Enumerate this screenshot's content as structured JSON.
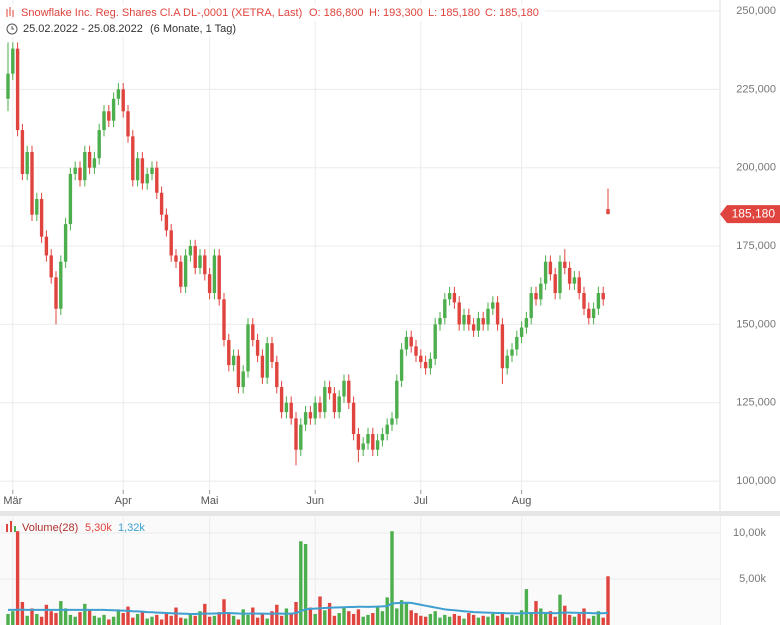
{
  "chart_data": {
    "type": "candlestick",
    "title": "Snowflake Inc. Reg. Shares Cl.A DL-,0001 (XETRA, Last)",
    "ohlc_labels": [
      "O: 186,800",
      "H: 193,300",
      "L: 185,180",
      "C: 185,180"
    ],
    "range": "25.02.2022 - 25.08.2022",
    "period": "(6 Monate, 1 Tag)",
    "up_color": "#4cae4c",
    "down_color": "#e0443e",
    "grid": true,
    "ylim": [
      97150,
      253510
    ],
    "yticks": [
      {
        "value": 100000,
        "label": "100,000"
      },
      {
        "value": 125000,
        "label": "125,000"
      },
      {
        "value": 150000,
        "label": "150,000"
      },
      {
        "value": 175000,
        "label": "175,000"
      },
      {
        "value": 200000,
        "label": "200,000"
      },
      {
        "value": 225000,
        "label": "225,000"
      },
      {
        "value": 250000,
        "label": "250,000"
      }
    ],
    "last_label": {
      "value": 185180,
      "label": "185,180"
    },
    "categories": [
      null,
      "Mär",
      null,
      null,
      null,
      null,
      null,
      null,
      null,
      null,
      null,
      null,
      null,
      null,
      null,
      null,
      null,
      null,
      null,
      null,
      null,
      null,
      null,
      null,
      "Apr",
      null,
      null,
      null,
      null,
      null,
      null,
      null,
      null,
      null,
      null,
      null,
      null,
      null,
      null,
      null,
      null,
      null,
      "Mai",
      null,
      null,
      null,
      null,
      null,
      null,
      null,
      null,
      null,
      null,
      null,
      null,
      null,
      null,
      null,
      null,
      null,
      null,
      null,
      null,
      null,
      "Jun",
      null,
      null,
      null,
      null,
      null,
      null,
      null,
      null,
      null,
      null,
      null,
      null,
      null,
      null,
      null,
      null,
      null,
      null,
      null,
      null,
      null,
      "Jul",
      null,
      null,
      null,
      null,
      null,
      null,
      null,
      null,
      null,
      null,
      null,
      null,
      null,
      null,
      null,
      null,
      null,
      null,
      null,
      null,
      "Aug",
      null,
      null,
      null,
      null,
      null,
      null,
      null,
      null,
      null,
      null,
      null,
      null,
      null,
      null,
      null,
      null,
      null,
      null
    ],
    "ohlc": [
      [
        222000,
        240000,
        218000,
        230000
      ],
      [
        230000,
        240000,
        228000,
        238000
      ],
      [
        238000,
        240000,
        210000,
        212000
      ],
      [
        212000,
        214000,
        196000,
        198000
      ],
      [
        198000,
        207000,
        196000,
        205000
      ],
      [
        205000,
        207000,
        183000,
        185000
      ],
      [
        185000,
        192000,
        183000,
        190000
      ],
      [
        190000,
        192000,
        176000,
        178000
      ],
      [
        178000,
        180000,
        170000,
        172000
      ],
      [
        172000,
        174000,
        163000,
        165000
      ],
      [
        165000,
        167000,
        150000,
        155000
      ],
      [
        155000,
        172000,
        153000,
        170000
      ],
      [
        170000,
        184000,
        168000,
        182000
      ],
      [
        182000,
        200000,
        180000,
        198000
      ],
      [
        198000,
        202000,
        196000,
        200000
      ],
      [
        200000,
        202000,
        194000,
        196000
      ],
      [
        196000,
        207000,
        194000,
        205000
      ],
      [
        205000,
        207000,
        198000,
        200000
      ],
      [
        200000,
        205000,
        198000,
        203000
      ],
      [
        203000,
        214000,
        201000,
        212000
      ],
      [
        212000,
        220000,
        210000,
        218000
      ],
      [
        218000,
        220000,
        213000,
        215000
      ],
      [
        215000,
        224000,
        213000,
        222000
      ],
      [
        222000,
        227000,
        220000,
        225000
      ],
      [
        225000,
        227000,
        216000,
        218000
      ],
      [
        218000,
        220000,
        208000,
        210000
      ],
      [
        210000,
        212000,
        194000,
        196000
      ],
      [
        196000,
        205000,
        194000,
        203000
      ],
      [
        203000,
        205000,
        193000,
        195000
      ],
      [
        195000,
        200000,
        193000,
        198000
      ],
      [
        198000,
        202000,
        196000,
        200000
      ],
      [
        200000,
        202000,
        190000,
        192000
      ],
      [
        192000,
        194000,
        183000,
        185000
      ],
      [
        185000,
        187000,
        178000,
        180000
      ],
      [
        180000,
        182000,
        170000,
        172000
      ],
      [
        172000,
        174000,
        168000,
        170000
      ],
      [
        170000,
        172000,
        160000,
        162000
      ],
      [
        162000,
        174000,
        160000,
        172000
      ],
      [
        172000,
        177000,
        170000,
        175000
      ],
      [
        175000,
        177000,
        166000,
        168000
      ],
      [
        168000,
        174000,
        166000,
        172000
      ],
      [
        172000,
        174000,
        164000,
        166000
      ],
      [
        166000,
        168000,
        158000,
        160000
      ],
      [
        160000,
        174000,
        158000,
        172000
      ],
      [
        172000,
        174000,
        156000,
        158000
      ],
      [
        158000,
        160000,
        143000,
        145000
      ],
      [
        145000,
        147000,
        135000,
        137000
      ],
      [
        137000,
        142000,
        135000,
        140000
      ],
      [
        140000,
        142000,
        128000,
        130000
      ],
      [
        130000,
        137000,
        128000,
        135000
      ],
      [
        135000,
        152000,
        133000,
        150000
      ],
      [
        150000,
        152000,
        143000,
        145000
      ],
      [
        145000,
        147000,
        138000,
        140000
      ],
      [
        140000,
        142000,
        131000,
        133000
      ],
      [
        133000,
        146000,
        131000,
        144000
      ],
      [
        144000,
        146000,
        136000,
        138000
      ],
      [
        138000,
        140000,
        128000,
        130000
      ],
      [
        130000,
        132000,
        120000,
        122000
      ],
      [
        122000,
        127000,
        120000,
        125000
      ],
      [
        125000,
        127000,
        118000,
        120000
      ],
      [
        120000,
        122000,
        105000,
        110000
      ],
      [
        110000,
        120000,
        108000,
        118000
      ],
      [
        118000,
        124000,
        116000,
        122000
      ],
      [
        122000,
        124000,
        118000,
        120000
      ],
      [
        120000,
        127000,
        118000,
        125000
      ],
      [
        125000,
        127000,
        120000,
        122000
      ],
      [
        122000,
        132000,
        120000,
        130000
      ],
      [
        130000,
        132000,
        126000,
        128000
      ],
      [
        128000,
        130000,
        120000,
        122000
      ],
      [
        122000,
        129000,
        120000,
        127000
      ],
      [
        127000,
        134000,
        125000,
        132000
      ],
      [
        132000,
        134000,
        123000,
        125000
      ],
      [
        125000,
        127000,
        113000,
        115000
      ],
      [
        115000,
        117000,
        106000,
        110000
      ],
      [
        110000,
        114000,
        108000,
        112000
      ],
      [
        112000,
        117000,
        110000,
        115000
      ],
      [
        115000,
        117000,
        108000,
        110000
      ],
      [
        110000,
        115000,
        108000,
        113000
      ],
      [
        113000,
        117000,
        111000,
        115000
      ],
      [
        115000,
        120000,
        113000,
        118000
      ],
      [
        118000,
        122000,
        116000,
        120000
      ],
      [
        120000,
        134000,
        118000,
        132000
      ],
      [
        132000,
        144000,
        130000,
        142000
      ],
      [
        142000,
        148000,
        140000,
        146000
      ],
      [
        146000,
        148000,
        141000,
        143000
      ],
      [
        143000,
        145000,
        138000,
        140000
      ],
      [
        140000,
        142000,
        136000,
        138000
      ],
      [
        138000,
        140000,
        134000,
        136000
      ],
      [
        136000,
        141000,
        134000,
        139000
      ],
      [
        139000,
        152000,
        137000,
        150000
      ],
      [
        150000,
        154000,
        148000,
        152000
      ],
      [
        152000,
        160000,
        150000,
        158000
      ],
      [
        158000,
        162000,
        156000,
        160000
      ],
      [
        160000,
        162000,
        155000,
        157000
      ],
      [
        157000,
        159000,
        148000,
        150000
      ],
      [
        150000,
        155000,
        148000,
        153000
      ],
      [
        153000,
        155000,
        148000,
        150000
      ],
      [
        150000,
        152000,
        146000,
        148000
      ],
      [
        148000,
        154000,
        146000,
        152000
      ],
      [
        152000,
        154000,
        148000,
        150000
      ],
      [
        150000,
        157000,
        148000,
        155000
      ],
      [
        155000,
        159000,
        153000,
        157000
      ],
      [
        157000,
        159000,
        148000,
        150000
      ],
      [
        150000,
        152000,
        131000,
        136000
      ],
      [
        136000,
        142000,
        134000,
        140000
      ],
      [
        140000,
        144000,
        138000,
        142000
      ],
      [
        142000,
        148000,
        140000,
        146000
      ],
      [
        146000,
        151000,
        144000,
        149000
      ],
      [
        149000,
        154000,
        147000,
        152000
      ],
      [
        152000,
        162000,
        150000,
        160000
      ],
      [
        160000,
        162000,
        156000,
        158000
      ],
      [
        158000,
        165000,
        156000,
        163000
      ],
      [
        163000,
        172000,
        161000,
        170000
      ],
      [
        170000,
        172000,
        164000,
        166000
      ],
      [
        166000,
        168000,
        158000,
        160000
      ],
      [
        160000,
        172000,
        158000,
        170000
      ],
      [
        170000,
        174000,
        166000,
        168000
      ],
      [
        168000,
        170000,
        161000,
        163000
      ],
      [
        163000,
        167000,
        161000,
        165000
      ],
      [
        165000,
        167000,
        158000,
        160000
      ],
      [
        160000,
        162000,
        153000,
        155000
      ],
      [
        155000,
        157000,
        150000,
        152000
      ],
      [
        152000,
        157000,
        150000,
        155000
      ],
      [
        155000,
        162000,
        153000,
        160000
      ],
      [
        160000,
        162000,
        156000,
        158000
      ],
      [
        186800,
        193300,
        185180,
        185180
      ]
    ],
    "volume": {
      "legend": "Volume(28)",
      "last_label": "5,30k",
      "ma_label": "1,32k",
      "ma_color": "#3fa0d0",
      "ylim": [
        0,
        11740
      ],
      "yticks": [
        {
          "value": 5000,
          "label": "5,00k"
        },
        {
          "value": 10000,
          "label": "10,00k"
        }
      ],
      "values": [
        1200,
        1500,
        10200,
        2500,
        1000,
        1800,
        1200,
        900,
        2200,
        1500,
        1300,
        2600,
        1800,
        1100,
        900,
        1400,
        2300,
        1600,
        1000,
        800,
        1100,
        600,
        900,
        1700,
        1300,
        2000,
        800,
        1200,
        1500,
        700,
        900,
        1100,
        600,
        1300,
        1000,
        1900,
        800,
        700,
        1200,
        1000,
        1500,
        2300,
        900,
        1000,
        1400,
        2800,
        1200,
        1000,
        600,
        1700,
        1100,
        1900,
        800,
        1300,
        700,
        1500,
        2200,
        1000,
        1800,
        1200,
        2500,
        9100,
        8800,
        1900,
        1200,
        3100,
        1600,
        2400,
        1000,
        1300,
        2000,
        1500,
        1200,
        1700,
        900,
        1100,
        1300,
        2000,
        1500,
        3000,
        10200,
        1800,
        2700,
        2400,
        1600,
        1300,
        1000,
        900,
        1200,
        1500,
        800,
        1100,
        900,
        1200,
        1000,
        700,
        1300,
        1100,
        800,
        1000,
        900,
        1200,
        1000,
        1400,
        800,
        1100,
        1000,
        1600,
        3900,
        1400,
        2600,
        1800,
        1200,
        1500,
        900,
        3300,
        2100,
        1100,
        900,
        1200,
        1800,
        700,
        1000,
        1500,
        800,
        5300
      ],
      "ma": [
        1650,
        1650,
        1660,
        1660,
        1650,
        1650,
        1640,
        1640,
        1650,
        1650,
        1650,
        1650,
        1650,
        1640,
        1640,
        1640,
        1650,
        1650,
        1650,
        1640,
        1640,
        1620,
        1600,
        1580,
        1560,
        1540,
        1500,
        1480,
        1450,
        1400,
        1380,
        1350,
        1330,
        1300,
        1280,
        1260,
        1240,
        1220,
        1200,
        1200,
        1220,
        1240,
        1230,
        1250,
        1270,
        1300,
        1300,
        1280,
        1250,
        1240,
        1230,
        1250,
        1240,
        1230,
        1220,
        1230,
        1240,
        1230,
        1220,
        1230,
        1300,
        1500,
        1700,
        1750,
        1780,
        1820,
        1850,
        1880,
        1900,
        1920,
        1930,
        1950,
        1960,
        1980,
        1980,
        1970,
        1980,
        2000,
        2020,
        2050,
        2350,
        2380,
        2400,
        2420,
        2400,
        2300,
        2200,
        2100,
        2000,
        1900,
        1800,
        1700,
        1650,
        1600,
        1550,
        1500,
        1450,
        1400,
        1380,
        1360,
        1340,
        1320,
        1300,
        1300,
        1280,
        1270,
        1260,
        1260,
        1300,
        1300,
        1320,
        1320,
        1300,
        1310,
        1280,
        1320,
        1350,
        1340,
        1330,
        1320,
        1330,
        1300,
        1280,
        1290,
        1280,
        1320
      ]
    }
  }
}
